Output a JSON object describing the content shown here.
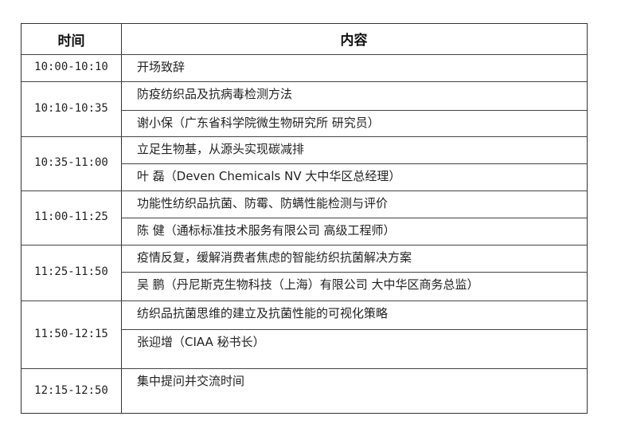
{
  "header": {
    "time": "时间",
    "content": "内容"
  },
  "rows": [
    {
      "time": "10:00-10:10",
      "items": [
        "开场致辞"
      ]
    },
    {
      "time": "10:10-10:35",
      "items": [
        "防疫纺织品及抗病毒检测方法",
        "谢小保（广东省科学院微生物研究所 研究员）"
      ]
    },
    {
      "time": "10:35-11:00",
      "items": [
        "立足生物基，从源头实现碳减排",
        "叶 磊（Deven Chemicals NV 大中华区总经理）"
      ]
    },
    {
      "time": "11:00-11:25",
      "items": [
        "功能性纺织品抗菌、防霉、防螨性能检测与评价",
        "陈 健（通标标准技术服务有限公司 高级工程师）"
      ]
    },
    {
      "time": "11:25-11:50",
      "items": [
        "疫情反复，缓解消费者焦虑的智能纺织抗菌解决方案",
        "吴 鹏（丹尼斯克生物科技（上海）有限公司 大中华区商务总监）"
      ]
    },
    {
      "time": "11:50-12:15",
      "items": [
        "纺织品抗菌思维的建立及抗菌性能的可视化策略",
        "张迎增（CIAA 秘书长）"
      ]
    },
    {
      "time": "12:15-12:50",
      "items": [
        "集中提问并交流时间"
      ]
    }
  ]
}
